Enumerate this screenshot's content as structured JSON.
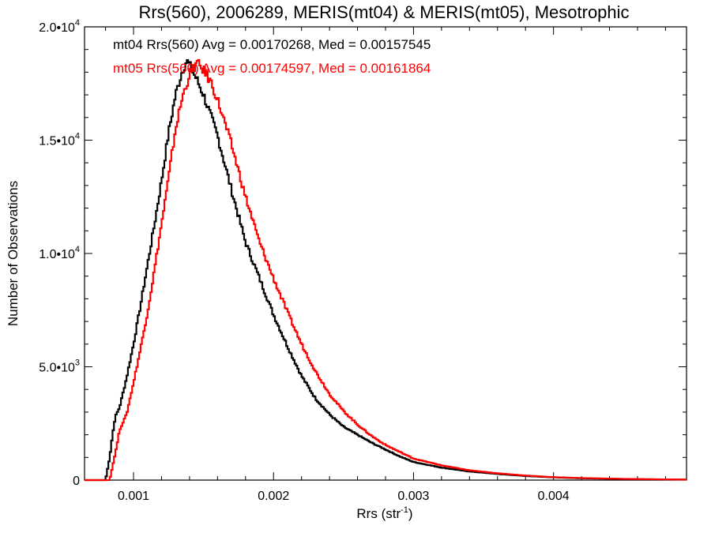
{
  "chart_data": {
    "type": "line",
    "step": true,
    "title": "Rrs(560), 2006289, MERIS(mt04) & MERIS(mt05), Mesotrophic",
    "xlabel": "Rrs (str",
    "xlabel_sup": "-1",
    "xlabel_close": ")",
    "ylabel": "Number of Observations",
    "xlim": [
      0.00065,
      0.00495
    ],
    "ylim": [
      0,
      20000
    ],
    "grid": false,
    "x_ticks": [
      {
        "value": 0.001,
        "label": "0.001"
      },
      {
        "value": 0.002,
        "label": "0.002"
      },
      {
        "value": 0.003,
        "label": "0.003"
      },
      {
        "value": 0.004,
        "label": "0.004"
      }
    ],
    "y_ticks": [
      {
        "value": 0,
        "mant": "0",
        "exp": ""
      },
      {
        "value": 5000,
        "mant": "5.0•10",
        "exp": "3"
      },
      {
        "value": 10000,
        "mant": "1.0•10",
        "exp": "4"
      },
      {
        "value": 15000,
        "mant": "1.5•10",
        "exp": "4"
      },
      {
        "value": 20000,
        "mant": "2.0•10",
        "exp": "4"
      }
    ],
    "annotations": [
      {
        "text": "mt04 Rrs(560) Avg = 0.00170268, Med = 0.00157545",
        "color": "#000000"
      },
      {
        "text": "mt05 Rrs(560) Avg = 0.00174597, Med = 0.00161864",
        "color": "#ff0000"
      }
    ],
    "series": [
      {
        "color": "#000000",
        "x": [
          0.00065,
          0.0008,
          0.00083,
          0.00085,
          0.00087,
          0.0009,
          0.00095,
          0.001,
          0.00105,
          0.0011,
          0.00115,
          0.0012,
          0.00125,
          0.0013,
          0.00135,
          0.00138,
          0.0014,
          0.00145,
          0.0015,
          0.0016,
          0.0017,
          0.0018,
          0.0019,
          0.002,
          0.0021,
          0.0022,
          0.0023,
          0.0024,
          0.0025,
          0.0026,
          0.0027,
          0.0028,
          0.0029,
          0.003,
          0.0032,
          0.0034,
          0.0036,
          0.0038,
          0.004,
          0.0042,
          0.0044,
          0.0046,
          0.0048,
          0.00495
        ],
        "y": [
          0,
          0,
          1000,
          2000,
          2800,
          3200,
          4500,
          6000,
          7700,
          9500,
          11300,
          13200,
          15300,
          17000,
          18100,
          18500,
          18300,
          17700,
          17000,
          15200,
          12800,
          10500,
          8900,
          7300,
          5900,
          4600,
          3600,
          2900,
          2350,
          2000,
          1650,
          1350,
          1050,
          800,
          550,
          380,
          270,
          180,
          120,
          80,
          60,
          40,
          30,
          20
        ]
      },
      {
        "color": "#ff0000",
        "x": [
          0.00065,
          0.00083,
          0.00085,
          0.00088,
          0.0009,
          0.00095,
          0.001,
          0.00105,
          0.0011,
          0.00115,
          0.0012,
          0.00125,
          0.0013,
          0.00135,
          0.0014,
          0.00145,
          0.0015,
          0.00155,
          0.0016,
          0.0017,
          0.0018,
          0.0019,
          0.002,
          0.0021,
          0.0022,
          0.0023,
          0.0024,
          0.0025,
          0.0026,
          0.0027,
          0.0028,
          0.0029,
          0.003,
          0.0032,
          0.0034,
          0.0036,
          0.0038,
          0.004,
          0.0042,
          0.0044,
          0.0046,
          0.0048,
          0.00495
        ],
        "y": [
          0,
          0,
          600,
          1500,
          2200,
          2900,
          4300,
          5800,
          7400,
          9300,
          11300,
          13300,
          15500,
          16900,
          17900,
          18400,
          18100,
          17600,
          16800,
          14800,
          12500,
          10500,
          8900,
          7400,
          6000,
          4800,
          3800,
          3050,
          2450,
          1950,
          1550,
          1250,
          950,
          650,
          430,
          300,
          200,
          130,
          90,
          65,
          45,
          32,
          20
        ]
      }
    ]
  }
}
